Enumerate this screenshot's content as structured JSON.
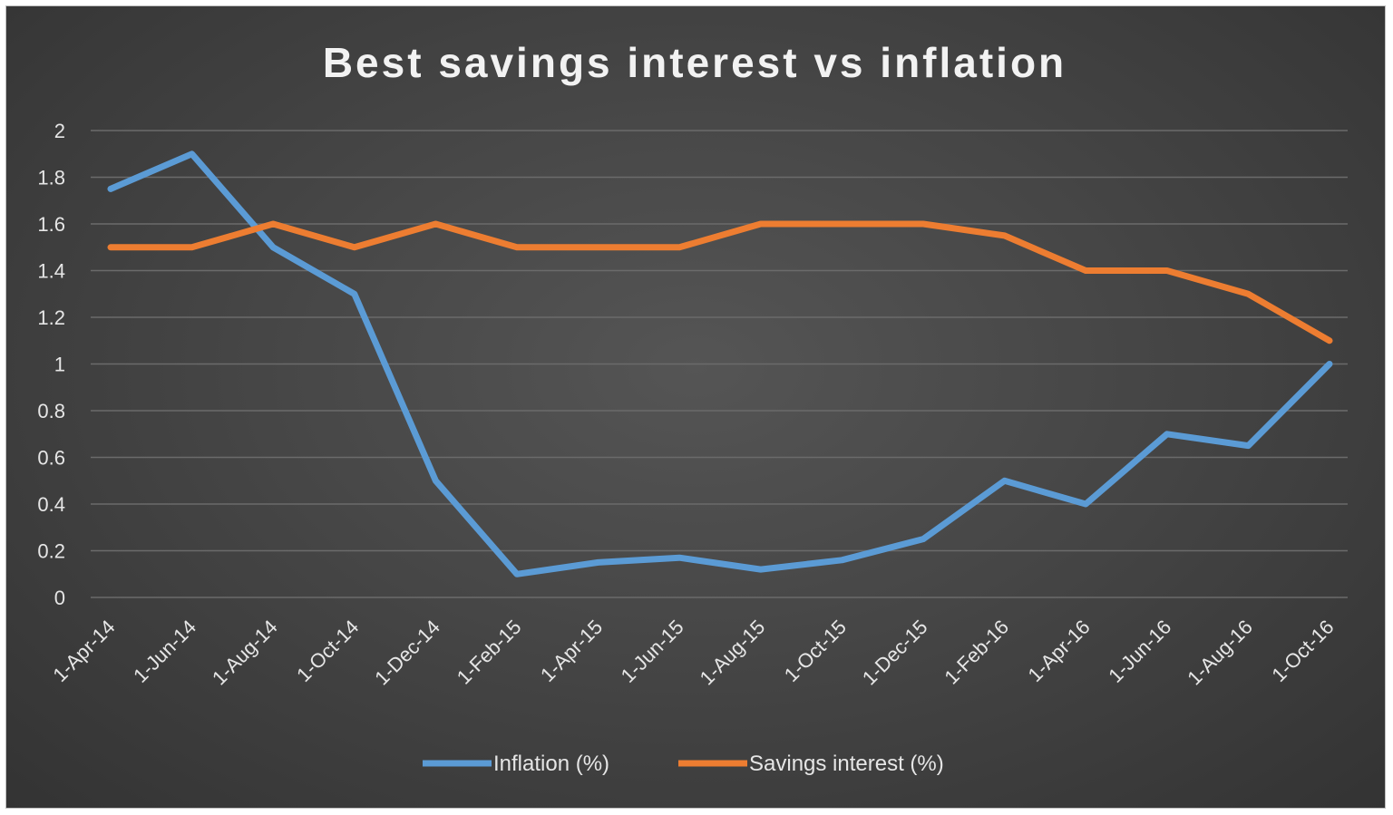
{
  "chart_data": {
    "type": "line",
    "title": "Best savings interest vs inflation",
    "xlabel": "",
    "ylabel": "",
    "ylim": [
      0,
      2
    ],
    "yticks": [
      "0",
      "0.2",
      "0.4",
      "0.6",
      "0.8",
      "1",
      "1.2",
      "1.4",
      "1.6",
      "1.8",
      "2"
    ],
    "grid": true,
    "legend_position": "bottom",
    "categories": [
      "1-Apr-14",
      "1-Jun-14",
      "1-Aug-14",
      "1-Oct-14",
      "1-Dec-14",
      "1-Feb-15",
      "1-Apr-15",
      "1-Jun-15",
      "1-Aug-15",
      "1-Oct-15",
      "1-Dec-15",
      "1-Feb-16",
      "1-Apr-16",
      "1-Jun-16",
      "1-Aug-16",
      "1-Oct-16"
    ],
    "series": [
      {
        "name": "Inflation (%)",
        "color": "#5b9bd5",
        "values": [
          1.75,
          1.9,
          1.5,
          1.3,
          0.5,
          0.1,
          0.15,
          0.17,
          0.12,
          0.16,
          0.25,
          0.5,
          0.4,
          0.7,
          0.65,
          1.0
        ]
      },
      {
        "name": "Savings interest (%)",
        "color": "#ed7d31",
        "values": [
          1.5,
          1.5,
          1.6,
          1.5,
          1.6,
          1.5,
          1.5,
          1.5,
          1.6,
          1.6,
          1.6,
          1.55,
          1.4,
          1.4,
          1.3,
          1.1
        ]
      }
    ]
  }
}
